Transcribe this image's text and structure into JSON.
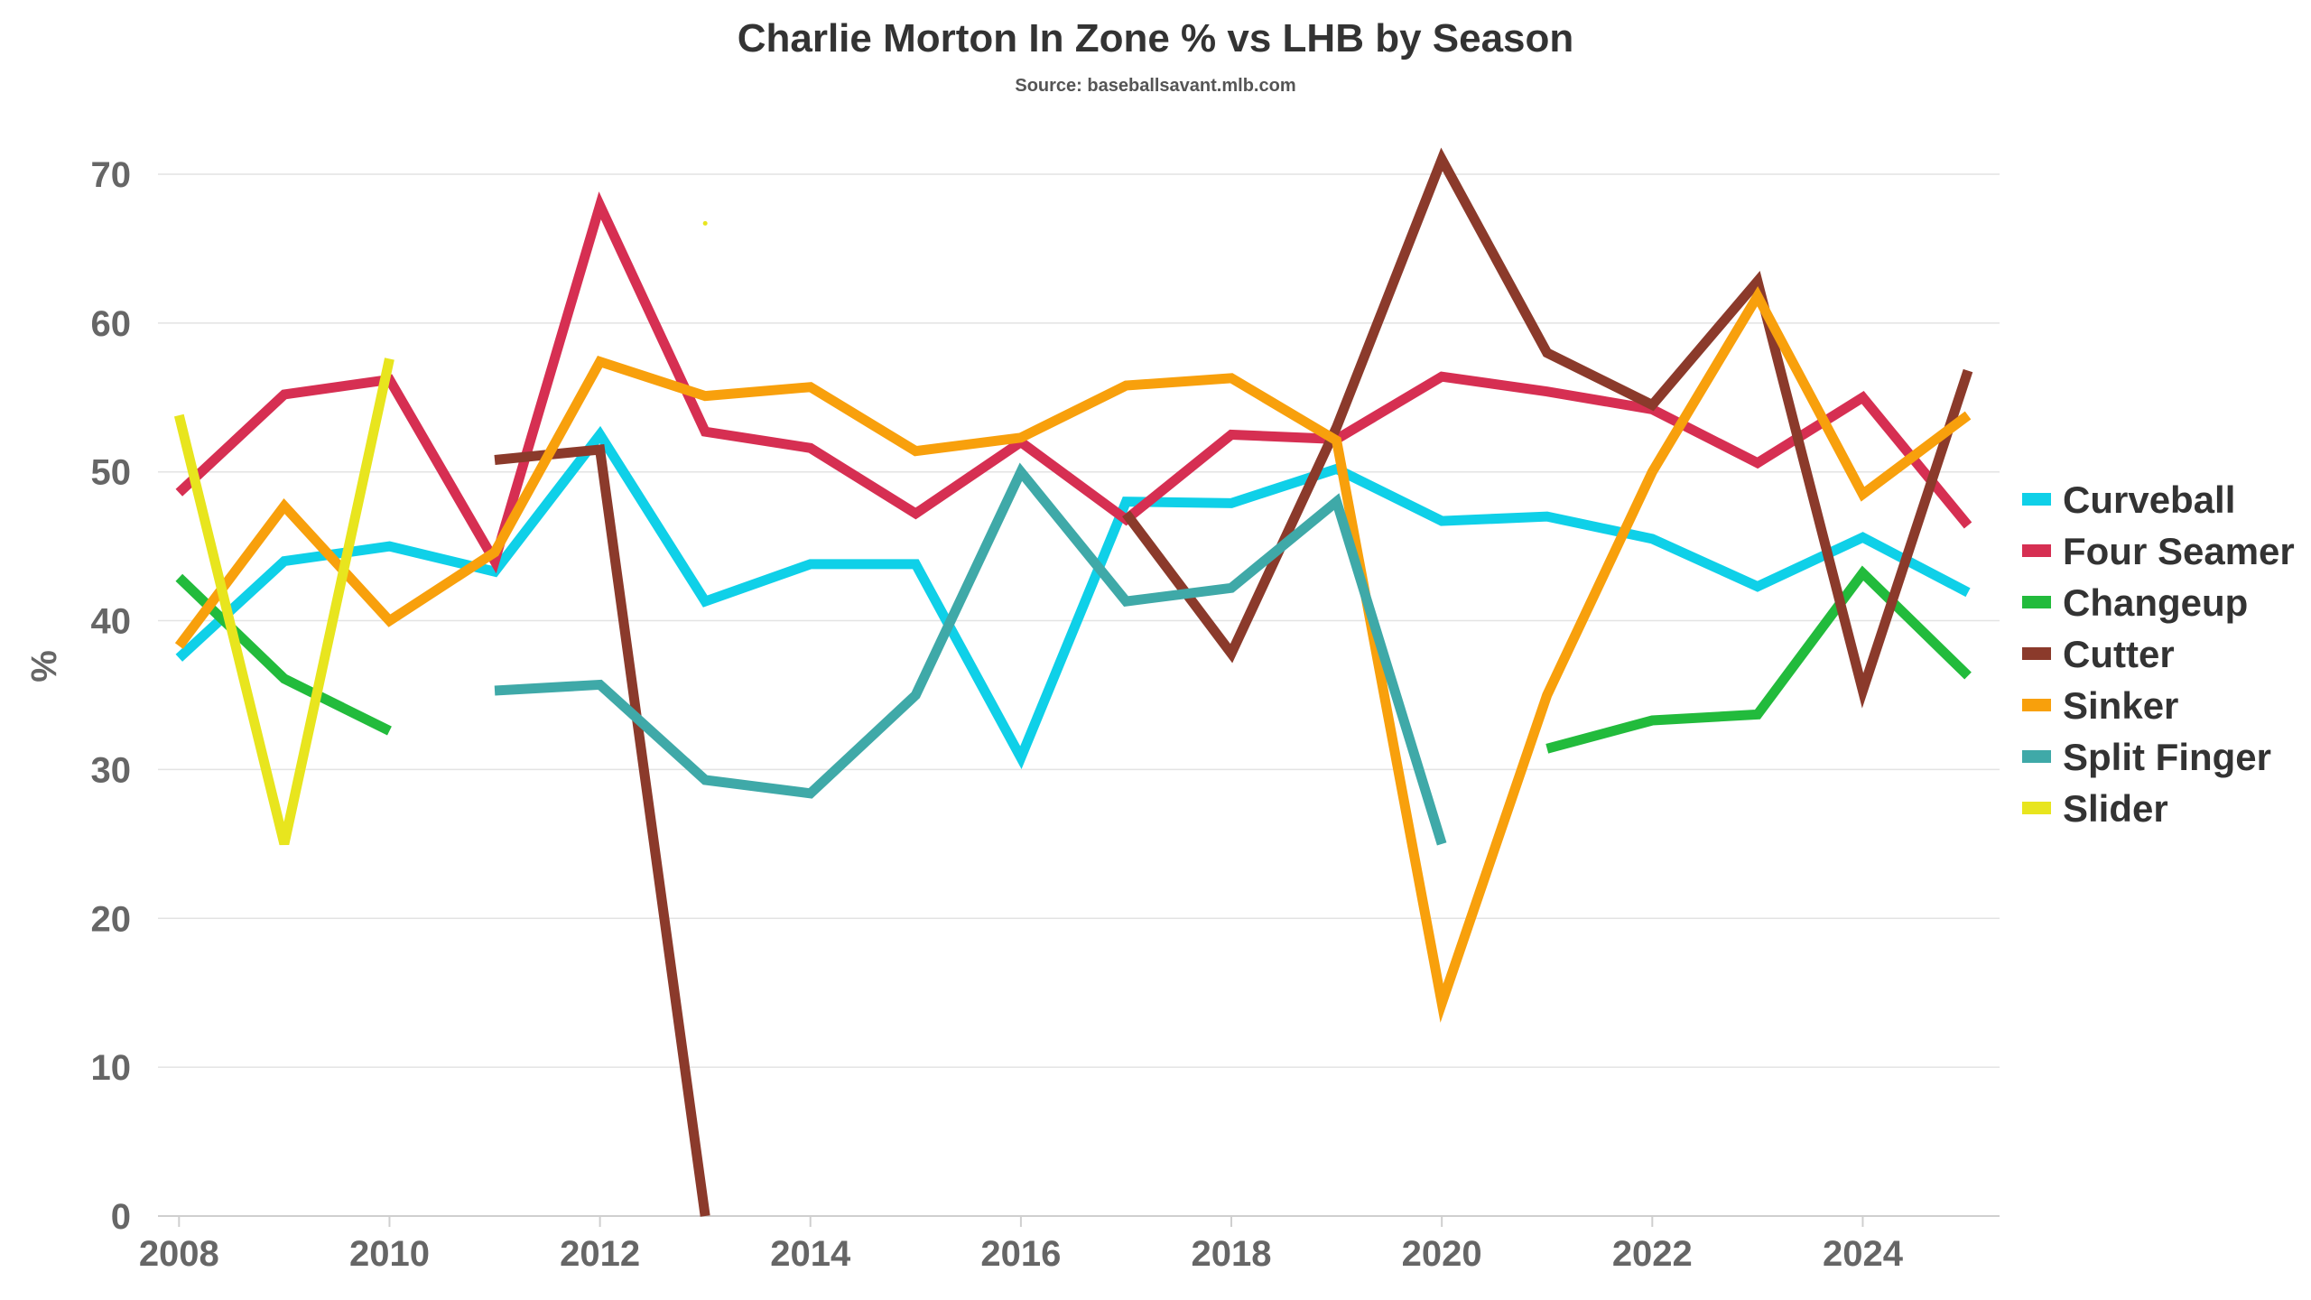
{
  "chart_data": {
    "type": "line",
    "title": "Charlie Morton In Zone % vs LHB by Season",
    "subtitle": "Source: baseballsavant.mlb.com",
    "xlabel": "",
    "ylabel": "%",
    "x": [
      2008,
      2009,
      2010,
      2011,
      2012,
      2013,
      2014,
      2015,
      2016,
      2017,
      2018,
      2019,
      2020,
      2021,
      2022,
      2023,
      2024,
      2025
    ],
    "xticks": [
      2008,
      2010,
      2012,
      2014,
      2016,
      2018,
      2020,
      2022,
      2024
    ],
    "ylim": [
      0,
      72
    ],
    "yticks": [
      0,
      10,
      20,
      30,
      40,
      50,
      60,
      70
    ],
    "grid": true,
    "legend_position": "right",
    "series": [
      {
        "name": "Curveball",
        "color": "#0fd0e8",
        "values": [
          37.5,
          44.0,
          45.0,
          43.3,
          52.5,
          41.3,
          43.8,
          43.8,
          30.8,
          48.0,
          47.9,
          50.2,
          46.7,
          47.0,
          45.5,
          42.3,
          45.6,
          41.9
        ]
      },
      {
        "name": "Four Seamer",
        "color": "#d62f52",
        "values": [
          48.6,
          55.2,
          56.2,
          44.0,
          67.9,
          52.7,
          51.6,
          47.2,
          52.0,
          46.8,
          52.5,
          52.2,
          56.4,
          55.4,
          54.2,
          50.6,
          55.0,
          46.4
        ]
      },
      {
        "name": "Changeup",
        "color": "#22bb3c",
        "values": [
          42.9,
          36.1,
          32.6,
          null,
          null,
          null,
          null,
          null,
          null,
          null,
          null,
          null,
          null,
          31.4,
          33.3,
          33.7,
          43.2,
          36.3
        ]
      },
      {
        "name": "Cutter",
        "color": "#8b3a2b",
        "values": [
          null,
          null,
          null,
          50.8,
          51.5,
          0.0,
          null,
          null,
          null,
          47.2,
          37.8,
          53.0,
          71.0,
          58.0,
          54.5,
          62.8,
          35.3,
          56.8
        ]
      },
      {
        "name": "Sinker",
        "color": "#f8a00c",
        "values": [
          38.3,
          47.7,
          40.0,
          44.6,
          57.4,
          55.1,
          55.7,
          51.4,
          52.3,
          55.8,
          56.3,
          52.1,
          14.3,
          35.0,
          50.0,
          61.8,
          48.5,
          53.8
        ]
      },
      {
        "name": "Split Finger",
        "color": "#3fa9a8",
        "values": [
          null,
          null,
          null,
          35.3,
          35.7,
          29.3,
          28.4,
          35.0,
          50.0,
          41.3,
          42.2,
          48.0,
          25.0,
          null,
          null,
          null,
          null,
          null
        ]
      },
      {
        "name": "Slider",
        "color": "#e8e51e",
        "values": [
          53.8,
          25.0,
          57.6,
          null,
          null,
          66.7,
          null,
          null,
          null,
          null,
          null,
          null,
          null,
          null,
          null,
          null,
          null,
          null
        ]
      }
    ]
  }
}
